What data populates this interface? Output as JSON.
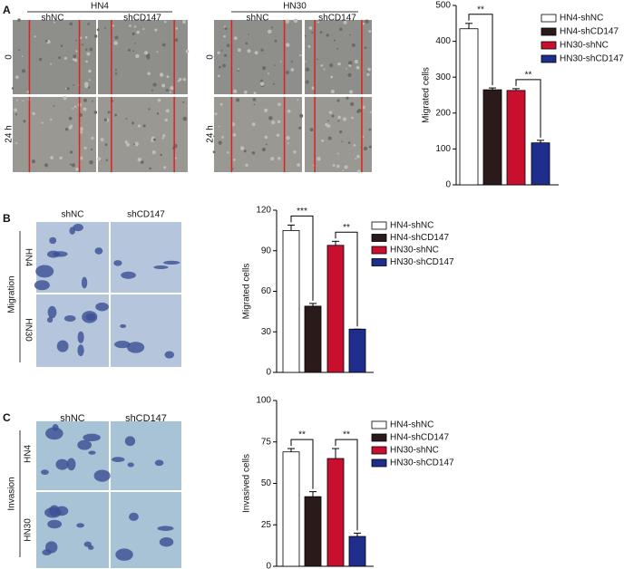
{
  "panels": [
    {
      "label": "A",
      "groups": [
        {
          "name": "HN4",
          "columns": [
            "shNC",
            "shCD147"
          ],
          "rows": [
            "0",
            "24 h"
          ]
        },
        {
          "name": "HN30",
          "columns": [
            "shNC",
            "shCD147"
          ],
          "rows": [
            "0",
            "24 h"
          ]
        }
      ]
    },
    {
      "label": "B",
      "columns": [
        "shNC",
        "shCD147"
      ],
      "side": "Migration",
      "rows": [
        "HN4",
        "HN30"
      ]
    },
    {
      "label": "C",
      "columns": [
        "shNC",
        "shCD147"
      ],
      "side": "Invasion",
      "rows": [
        "HN4",
        "HN30"
      ]
    }
  ],
  "chart_data": [
    {
      "type": "bar",
      "ylabel": "Migrated cells",
      "categories": [
        "HN4-shNC",
        "HN4-shCD147",
        "HN30-shNC",
        "HN30-shCD147"
      ],
      "values": [
        435,
        265,
        263,
        117
      ],
      "errors": [
        15,
        5,
        5,
        7
      ],
      "colors": [
        "#ffffff",
        "#2b1a1a",
        "#c8102e",
        "#1f2d8c"
      ],
      "ylim": [
        0,
        500
      ],
      "yticks": [
        0,
        100,
        200,
        300,
        400,
        500
      ],
      "annotations": [
        "**",
        "**"
      ]
    },
    {
      "type": "bar",
      "ylabel": "Migrated cells",
      "categories": [
        "HN4-shNC",
        "HN4-shCD147",
        "HN30-shNC",
        "HN30-shCD147"
      ],
      "values": [
        105,
        49,
        94,
        32
      ],
      "errors": [
        4,
        2,
        3,
        0
      ],
      "colors": [
        "#ffffff",
        "#2b1a1a",
        "#c8102e",
        "#1f2d8c"
      ],
      "ylim": [
        0,
        120
      ],
      "yticks": [
        0,
        30,
        60,
        90,
        120
      ],
      "annotations": [
        "***",
        "**"
      ]
    },
    {
      "type": "bar",
      "ylabel": "Invasived cells",
      "categories": [
        "HN4-shNC",
        "HN4-shCD147",
        "HN30-shNC",
        "HN30-shCD147"
      ],
      "values": [
        69,
        42,
        65,
        18
      ],
      "errors": [
        2,
        3,
        6,
        2
      ],
      "colors": [
        "#ffffff",
        "#2b1a1a",
        "#c8102e",
        "#1f2d8c"
      ],
      "ylim": [
        0,
        100
      ],
      "yticks": [
        0,
        25,
        50,
        75,
        100
      ],
      "annotations": [
        "**",
        "**"
      ]
    }
  ]
}
